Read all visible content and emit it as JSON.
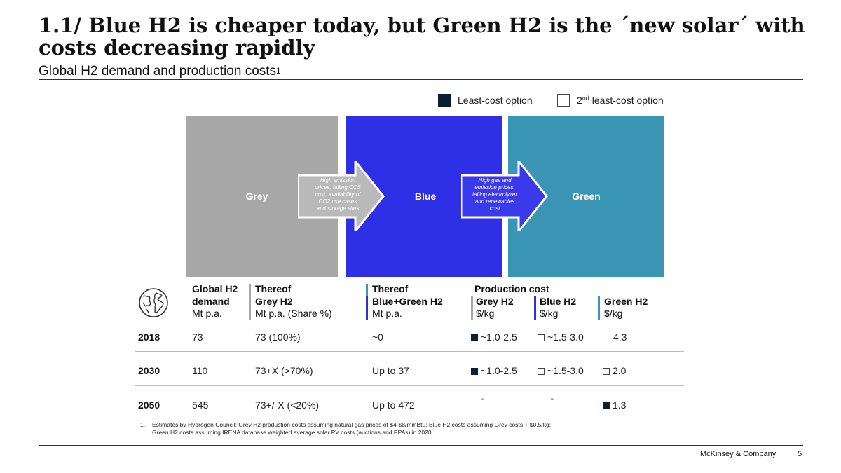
{
  "header": {
    "title": "1.1/ Blue H2 is cheaper today, but Green H2 is the ´new solar´ with costs decreasing rapidly",
    "subtitle": "Global H2 demand and production costs",
    "subtitle_sup": "1"
  },
  "legend": {
    "least_cost": "Least-cost option",
    "second_prefix": "2",
    "second_sup": "nd",
    "second_suffix": " least-cost option",
    "fill_color": "#0b1f33"
  },
  "panels": {
    "grey": "Grey",
    "blue": "Blue",
    "green": "Green",
    "grey_color": "#a7a7a7",
    "blue_color": "#2f2fe6",
    "green_color": "#3b95b4"
  },
  "transitions": {
    "grey_to_blue": [
      "High emission",
      "prices, falling CCS",
      "cost, availability of",
      "CO2 use cases",
      "and storage sites"
    ],
    "blue_to_green": [
      "High gas and",
      "emission prices,",
      "falling electrolyzer",
      "and renewables",
      "cost"
    ]
  },
  "table": {
    "headers": {
      "demand": [
        "Global H2",
        "demand",
        "Mt p.a."
      ],
      "grey": [
        "Thereof",
        "Grey H2",
        "Mt p.a. (Share %)"
      ],
      "bluegreen": [
        "Thereof",
        "Blue+Green H2",
        "Mt p.a."
      ],
      "production_cost": "Production cost",
      "grey_cost": [
        "Grey H2",
        "$/kg"
      ],
      "blue_cost": [
        "Blue H2",
        "$/kg"
      ],
      "green_cost": [
        "Green H2",
        "$/kg"
      ]
    },
    "rows": [
      {
        "year": "2018",
        "demand": "73",
        "grey": "73 (100%)",
        "bluegreen": "~0",
        "grey_cost": "~1.0-2.5",
        "grey_mark": "fill",
        "blue_cost": "~1.5-3.0",
        "blue_mark": "empty",
        "green_cost": "4.3",
        "green_mark": "none"
      },
      {
        "year": "2030",
        "demand": "110",
        "grey": "73+X (>70%)",
        "bluegreen": "Up to 37",
        "grey_cost": "~1.0-2.5",
        "grey_mark": "fill",
        "blue_cost": "~1.5-3.0",
        "blue_mark": "empty",
        "green_cost": "2.0",
        "green_mark": "empty"
      },
      {
        "year": "2050",
        "demand": "545",
        "grey": "73+/-X (<20%)",
        "bluegreen": "Up to 472",
        "grey_cost": "\"",
        "grey_mark": "none",
        "blue_cost": "\"",
        "blue_mark": "none",
        "green_cost": "1.3",
        "green_mark": "fill"
      }
    ]
  },
  "footnote": {
    "num": "1.",
    "line1": "Estimates by Hydrogen Council; Grey H2 production costs assuming natural gas prices of $4-$8/mmBtu; Blue H2 costs assuming Grey costs + $0.5/kg;",
    "line2": "Green H2 costs assuming IRENA database weighted average solar PV costs (auctions and PPAs) in 2020"
  },
  "footer": {
    "brand": "McKinsey & Company",
    "page": "5"
  }
}
